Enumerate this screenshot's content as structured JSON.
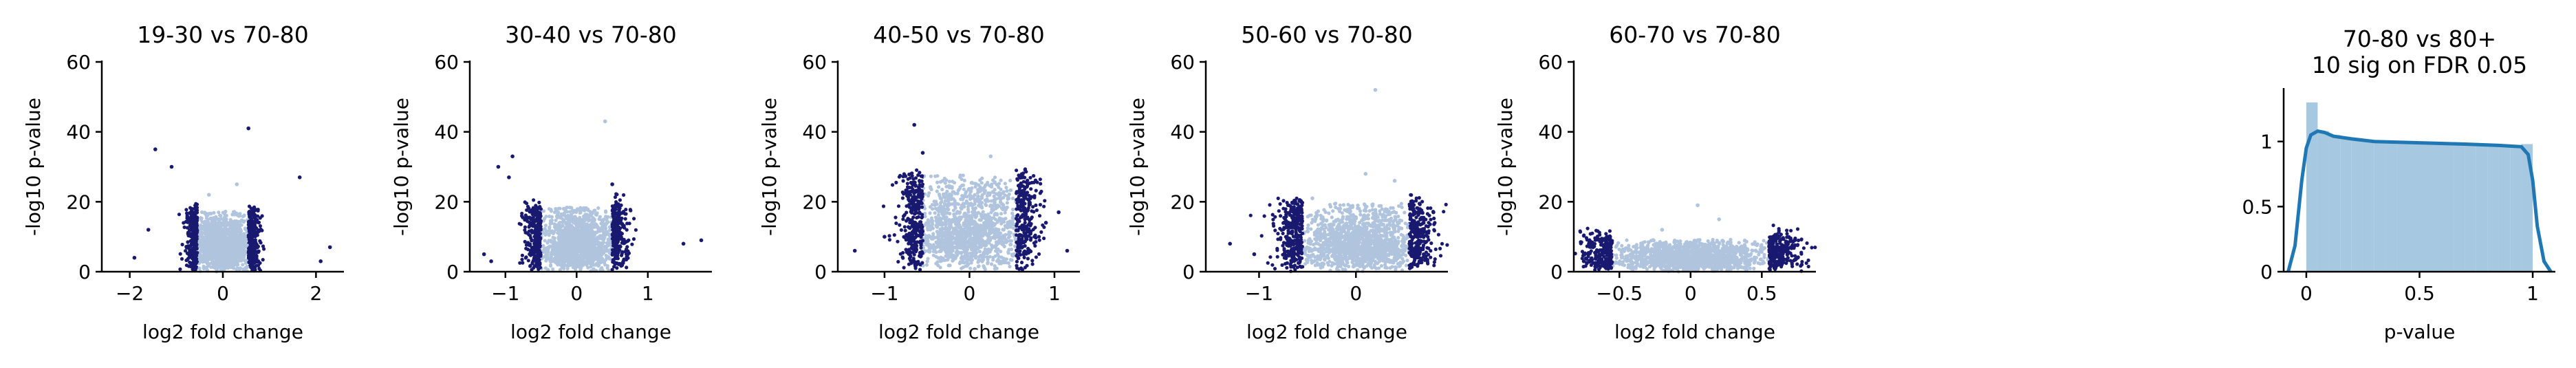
{
  "colors": {
    "nonsig": "#b0c4de",
    "sig": "#191970",
    "hist_bar": "#a6c8e0",
    "kde": "#1f77b4"
  },
  "chart_data": [
    {
      "type": "scatter",
      "title": "19-30 vs 70-80",
      "xlabel": "log2 fold change",
      "ylabel": "-log10 p-value",
      "xlim": [
        -2.6,
        2.6
      ],
      "ylim": [
        0,
        60
      ],
      "xticks": [
        -2,
        0,
        2
      ],
      "yticks": [
        0,
        20,
        40,
        60
      ],
      "threshold": 0.55,
      "core_halfwidth": 0.7,
      "core_height": 15,
      "outliers": [
        [
          -1.45,
          35
        ],
        [
          -1.1,
          30
        ],
        [
          -0.3,
          22
        ],
        [
          0.55,
          41
        ],
        [
          0.3,
          25
        ],
        [
          1.65,
          27
        ],
        [
          2.3,
          7
        ],
        [
          2.1,
          3
        ],
        [
          -1.9,
          4
        ],
        [
          -1.6,
          12
        ]
      ]
    },
    {
      "type": "scatter",
      "title": "30-40 vs 70-80",
      "xlabel": "log2 fold change",
      "ylabel": "-log10 p-value",
      "xlim": [
        -1.5,
        1.9
      ],
      "ylim": [
        0,
        60
      ],
      "xticks": [
        -1,
        0,
        1
      ],
      "yticks": [
        0,
        20,
        40,
        60
      ],
      "threshold": 0.5,
      "core_halfwidth": 0.6,
      "core_height": 16,
      "outliers": [
        [
          -1.1,
          30
        ],
        [
          -0.95,
          27
        ],
        [
          -0.9,
          33
        ],
        [
          0.4,
          43
        ],
        [
          0.5,
          25
        ],
        [
          1.5,
          8
        ],
        [
          1.75,
          9
        ],
        [
          -1.3,
          5
        ],
        [
          -1.2,
          3
        ]
      ]
    },
    {
      "type": "scatter",
      "title": "40-50 vs 70-80",
      "xlabel": "log2 fold change",
      "ylabel": "-log10 p-value",
      "xlim": [
        -1.55,
        1.3
      ],
      "ylim": [
        0,
        60
      ],
      "xticks": [
        -1,
        0,
        1
      ],
      "yticks": [
        0,
        20,
        40,
        60
      ],
      "threshold": 0.55,
      "core_halfwidth": 0.75,
      "core_height": 24,
      "outliers": [
        [
          -0.65,
          42
        ],
        [
          -0.55,
          34
        ],
        [
          0.25,
          33
        ],
        [
          1.05,
          17
        ],
        [
          -1.35,
          6
        ],
        [
          1.15,
          6
        ],
        [
          -1.0,
          10
        ],
        [
          0.9,
          14
        ]
      ]
    },
    {
      "type": "scatter",
      "title": "50-60 vs 70-80",
      "xlabel": "log2 fold change",
      "ylabel": "-log10 p-value",
      "xlim": [
        -1.55,
        0.95
      ],
      "ylim": [
        0,
        60
      ],
      "xticks": [
        -1,
        0
      ],
      "yticks": [
        0,
        20,
        40,
        60
      ],
      "threshold": 0.55,
      "core_halfwidth": 0.75,
      "core_height": 17,
      "outliers": [
        [
          0.2,
          52
        ],
        [
          0.1,
          28
        ],
        [
          0.4,
          26
        ],
        [
          -1.05,
          5
        ],
        [
          -1.3,
          8
        ],
        [
          0.8,
          17
        ],
        [
          -0.45,
          21
        ]
      ]
    },
    {
      "type": "scatter",
      "title": "60-70 vs 70-80",
      "xlabel": "log2 fold change",
      "ylabel": "-log10 p-value",
      "xlim": [
        -0.82,
        0.88
      ],
      "ylim": [
        0,
        60
      ],
      "xticks": [
        -0.5,
        0.0,
        0.5
      ],
      "yticks": [
        0,
        20,
        40,
        60
      ],
      "threshold": 0.55,
      "core_halfwidth": 0.6,
      "core_height": 8,
      "outliers": [
        [
          0.05,
          19
        ],
        [
          -0.2,
          12
        ],
        [
          0.2,
          15
        ],
        [
          -0.75,
          3
        ],
        [
          0.78,
          2
        ]
      ]
    },
    {
      "type": "histogram",
      "title_lines": [
        "70-80 vs 80+",
        "10 sig on FDR 0.05"
      ],
      "xlabel": "p-value",
      "xlim": [
        -0.1,
        1.1
      ],
      "ylim": [
        0,
        1.4
      ],
      "xticks": [
        0.0,
        0.5,
        1.0
      ],
      "yticks": [
        0.0,
        0.5,
        1.0
      ],
      "bins": [
        0.0,
        0.05,
        0.1,
        0.15,
        0.2,
        0.25,
        0.3,
        0.35,
        0.4,
        0.45,
        0.5,
        0.55,
        0.6,
        0.65,
        0.7,
        0.75,
        0.8,
        0.85,
        0.9,
        0.95,
        1.0
      ],
      "density": [
        1.3,
        1.08,
        1.05,
        1.03,
        1.02,
        1.01,
        1.0,
        1.0,
        0.99,
        0.99,
        0.99,
        0.98,
        0.98,
        0.98,
        0.97,
        0.97,
        0.97,
        0.96,
        0.96,
        0.98
      ],
      "kde_x": [
        -0.08,
        -0.05,
        -0.02,
        0.0,
        0.02,
        0.05,
        0.08,
        0.12,
        0.2,
        0.3,
        0.5,
        0.7,
        0.85,
        0.95,
        0.98,
        1.0,
        1.02,
        1.05,
        1.08
      ],
      "kde_y": [
        0.0,
        0.2,
        0.7,
        0.95,
        1.05,
        1.08,
        1.07,
        1.04,
        1.02,
        1.0,
        0.99,
        0.98,
        0.97,
        0.96,
        0.9,
        0.7,
        0.35,
        0.08,
        0.0
      ]
    }
  ]
}
